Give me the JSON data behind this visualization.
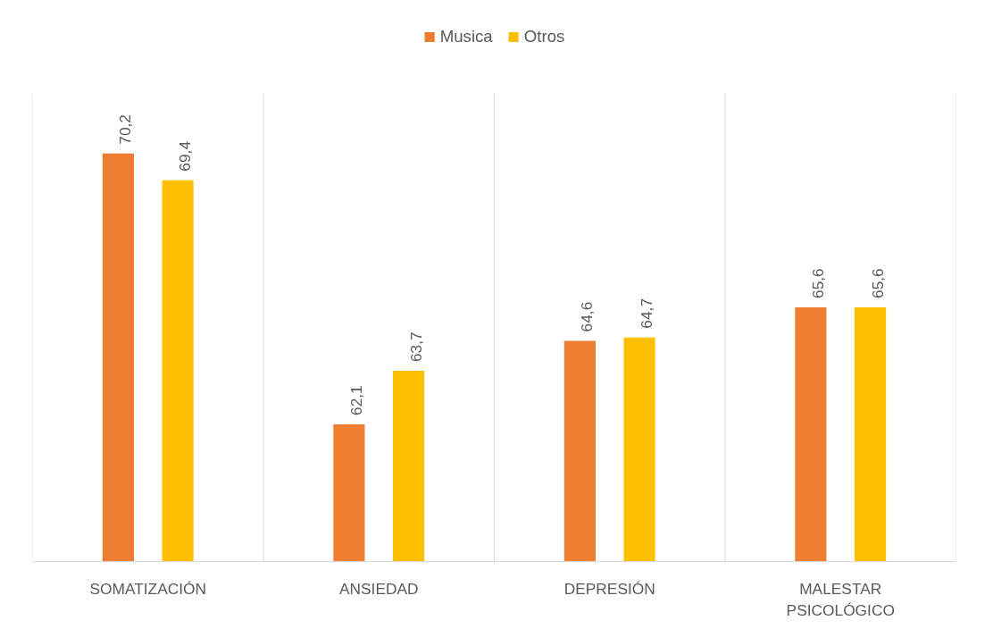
{
  "chart_data": {
    "type": "bar",
    "categories": [
      "SOMATIZACIÓN",
      "ANSIEDAD",
      "DEPRESIÓN",
      "MALESTAR PSICOLÓGICO"
    ],
    "series": [
      {
        "name": "Musica",
        "color": "#ed7d31",
        "values": [
          70.2,
          62.1,
          64.6,
          65.6
        ],
        "value_labels": [
          "70,2",
          "62,1",
          "64,6",
          "65,6"
        ]
      },
      {
        "name": "Otros",
        "color": "#ffc000",
        "values": [
          69.4,
          63.7,
          64.7,
          65.6
        ],
        "value_labels": [
          "69,4",
          "63,7",
          "64,7",
          "65,6"
        ]
      }
    ],
    "ylim": [
      58,
      72
    ],
    "grid": "x",
    "legend": "top",
    "tick_labels": "x"
  }
}
